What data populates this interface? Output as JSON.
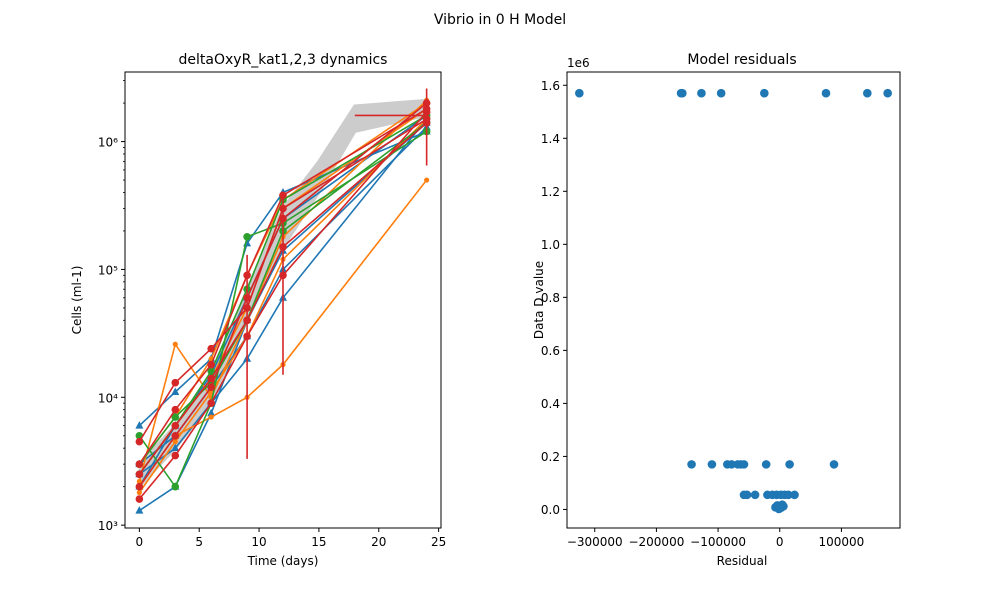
{
  "figure": {
    "suptitle": "Vibrio in 0 H Model"
  },
  "colors": {
    "blue": "#1f77b4",
    "orange": "#ff7f0e",
    "green": "#2ca02c",
    "red": "#d62728",
    "grey": "#cccccc"
  },
  "chart_data": [
    {
      "type": "line",
      "title": "deltaOxyR_kat1,2,3 dynamics",
      "xlabel": "Time (days)",
      "ylabel": "Cells (ml-1)",
      "yscale": "log",
      "xlim": [
        -1.2,
        25.2
      ],
      "ylim": [
        950,
        3500000
      ],
      "xticks": [
        0,
        5,
        10,
        15,
        20,
        25
      ],
      "yticks": [
        1000,
        10000,
        100000,
        1000000
      ],
      "ytick_labels": [
        "10³",
        "10⁴",
        "10⁵",
        "10⁶"
      ],
      "grey_band": {
        "x": [
          0,
          3,
          6,
          9,
          12,
          15,
          18,
          24
        ],
        "lower": [
          2000,
          4000,
          9000,
          40000,
          150000,
          400000,
          1200000,
          1600000
        ],
        "upper": [
          3000,
          6000,
          14000,
          70000,
          300000,
          700000,
          1900000,
          2100000
        ]
      },
      "series": [
        {
          "color": "blue",
          "marker": "triangle",
          "x": [
            0,
            3,
            6,
            9,
            12,
            24
          ],
          "y": [
            6000,
            11000,
            20000,
            160000,
            400000,
            1200000
          ]
        },
        {
          "color": "blue",
          "marker": "triangle",
          "x": [
            0,
            3,
            6,
            9,
            12,
            24
          ],
          "y": [
            1300,
            2000,
            7500,
            40000,
            140000,
            1400000
          ]
        },
        {
          "color": "blue",
          "marker": "triangle",
          "x": [
            0,
            3,
            6,
            9,
            12,
            24
          ],
          "y": [
            3000,
            5000,
            12000,
            30000,
            100000,
            1300000
          ]
        },
        {
          "color": "blue",
          "marker": "triangle",
          "x": [
            0,
            3,
            6,
            9,
            12,
            24
          ],
          "y": [
            2500,
            4000,
            9000,
            20000,
            60000,
            1500000
          ]
        },
        {
          "color": "blue",
          "marker": "triangle",
          "x": [
            0,
            3,
            6,
            9,
            12,
            24
          ],
          "y": [
            2000,
            6000,
            15000,
            60000,
            250000,
            1600000
          ]
        },
        {
          "color": "orange",
          "marker": "dot",
          "x": [
            0,
            3,
            6,
            9,
            12,
            24
          ],
          "y": [
            2200,
            26000,
            10000,
            40000,
            180000,
            2100000
          ]
        },
        {
          "color": "orange",
          "marker": "dot",
          "x": [
            0,
            3,
            6,
            9,
            12,
            24
          ],
          "y": [
            2000,
            5000,
            7000,
            10000,
            18000,
            500000
          ]
        },
        {
          "color": "orange",
          "marker": "dot",
          "x": [
            0,
            3,
            6,
            9,
            12,
            24
          ],
          "y": [
            3000,
            7000,
            20000,
            90000,
            350000,
            2000000
          ]
        },
        {
          "color": "orange",
          "marker": "dot",
          "x": [
            0,
            3,
            6,
            9,
            12,
            24
          ],
          "y": [
            2500,
            6000,
            14000,
            50000,
            300000,
            1800000
          ]
        },
        {
          "color": "orange",
          "marker": "dot",
          "x": [
            0,
            3,
            6,
            9,
            12,
            24
          ],
          "y": [
            1800,
            4500,
            11000,
            30000,
            120000,
            1500000
          ]
        },
        {
          "color": "green",
          "marker": "circle",
          "x": [
            0,
            3,
            6,
            9,
            12,
            24
          ],
          "y": [
            5000,
            2000,
            9000,
            180000,
            230000,
            1200000
          ]
        },
        {
          "color": "green",
          "marker": "circle",
          "x": [
            0,
            3,
            6,
            9,
            12,
            24
          ],
          "y": [
            2500,
            6000,
            16000,
            70000,
            350000,
            1600000
          ]
        },
        {
          "color": "green",
          "marker": "circle",
          "x": [
            0,
            3,
            6,
            9,
            12,
            24
          ],
          "y": [
            3000,
            7000,
            13000,
            40000,
            200000,
            1400000
          ]
        },
        {
          "color": "red",
          "marker": "circle",
          "x": [
            0,
            3,
            6,
            9,
            12,
            24
          ],
          "y": [
            4500,
            13000,
            24000,
            50000,
            300000,
            1500000
          ]
        },
        {
          "color": "red",
          "marker": "circle",
          "x": [
            0,
            3,
            6,
            9,
            12,
            24
          ],
          "y": [
            1600,
            3500,
            9000,
            30000,
            90000,
            1700000
          ]
        },
        {
          "color": "red",
          "marker": "circle",
          "x": [
            0,
            3,
            6,
            9,
            12,
            24
          ],
          "y": [
            2000,
            5000,
            12000,
            60000,
            250000,
            2000000
          ]
        },
        {
          "color": "red",
          "marker": "circle",
          "x": [
            0,
            3,
            6,
            9,
            12,
            24
          ],
          "y": [
            3000,
            8000,
            18000,
            90000,
            380000,
            1800000
          ]
        },
        {
          "color": "red",
          "marker": "circle",
          "x": [
            0,
            3,
            6,
            9,
            12,
            24
          ],
          "y": [
            2500,
            6000,
            14000,
            40000,
            150000,
            1400000
          ]
        }
      ],
      "mean_series": {
        "color": "red",
        "x": [
          18,
          24
        ],
        "y": [
          1600000,
          1600000
        ]
      },
      "error_bars": [
        {
          "x": 9,
          "low": 3300,
          "high": 130000
        },
        {
          "x": 12,
          "low": 15000,
          "high": 400000
        },
        {
          "x": 24,
          "low": 650000,
          "high": 2600000
        }
      ]
    },
    {
      "type": "scatter",
      "title": "Model residuals",
      "xlabel": "Residual",
      "ylabel": "Data D value",
      "offset_label": "1e6",
      "xlim": [
        -345000,
        195000
      ],
      "ylim": [
        -70000,
        1650000
      ],
      "xticks": [
        -300000,
        -200000,
        -100000,
        0,
        100000
      ],
      "xtick_labels": [
        "−300000",
        "−200000",
        "−100000",
        "0",
        "100000"
      ],
      "yticks": [
        0,
        200000,
        400000,
        600000,
        800000,
        1000000,
        1200000,
        1400000,
        1600000
      ],
      "ytick_labels": [
        "0.0",
        "0.2",
        "0.4",
        "0.6",
        "0.8",
        "1.0",
        "1.2",
        "1.4",
        "1.6"
      ],
      "color": "blue",
      "points": [
        [
          -325000,
          1570000
        ],
        [
          -160000,
          1570000
        ],
        [
          -158000,
          1570000
        ],
        [
          -127000,
          1570000
        ],
        [
          -95000,
          1570000
        ],
        [
          -25000,
          1570000
        ],
        [
          75000,
          1570000
        ],
        [
          142000,
          1570000
        ],
        [
          175000,
          1570000
        ],
        [
          -143000,
          170000
        ],
        [
          -110000,
          170000
        ],
        [
          -85000,
          170000
        ],
        [
          -78000,
          170000
        ],
        [
          -68000,
          170000
        ],
        [
          -63000,
          170000
        ],
        [
          -58000,
          170000
        ],
        [
          -22000,
          170000
        ],
        [
          16000,
          170000
        ],
        [
          88000,
          170000
        ],
        [
          -58000,
          55000
        ],
        [
          -53000,
          55000
        ],
        [
          -40000,
          55000
        ],
        [
          -20000,
          55000
        ],
        [
          -12000,
          55000
        ],
        [
          -5000,
          55000
        ],
        [
          2000,
          55000
        ],
        [
          8000,
          55000
        ],
        [
          14000,
          55000
        ],
        [
          24000,
          55000
        ],
        [
          -7000,
          8000
        ],
        [
          -3000,
          8000
        ],
        [
          0,
          8000
        ],
        [
          3000,
          8000
        ],
        [
          6000,
          12000
        ],
        [
          -1500,
          2000
        ],
        [
          1000,
          5000
        ],
        [
          4000,
          18000
        ],
        [
          -4000,
          15000
        ]
      ]
    }
  ]
}
